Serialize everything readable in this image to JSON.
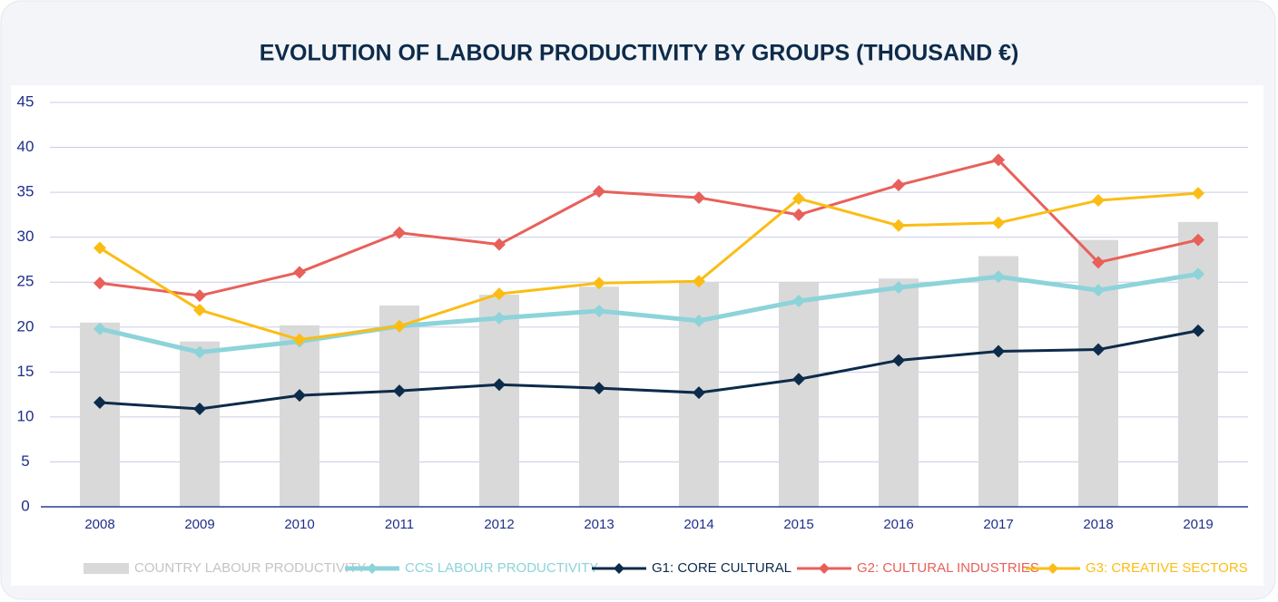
{
  "chart_data": {
    "type": "combo",
    "title": "EVOLUTION OF LABOUR PRODUCTIVITY BY GROUPS (THOUSAND €)",
    "categories": [
      "2008",
      "2009",
      "2010",
      "2011",
      "2012",
      "2013",
      "2014",
      "2015",
      "2016",
      "2017",
      "2018",
      "2019"
    ],
    "series": [
      {
        "name": "COUNTRY LABOUR PRODUCTIVITY",
        "type": "bar",
        "color": "#d9d9d9",
        "values": [
          20.5,
          18.4,
          20.2,
          22.4,
          23.6,
          24.5,
          25.0,
          25.0,
          25.4,
          27.9,
          29.7,
          31.7
        ]
      },
      {
        "name": "CCS LABOUR PRODUCTIVITY",
        "type": "line",
        "color": "#8dd3da",
        "values": [
          19.8,
          17.2,
          18.4,
          20.1,
          21.0,
          21.8,
          20.7,
          22.9,
          24.4,
          25.6,
          24.1,
          25.9
        ]
      },
      {
        "name": "G1: CORE CULTURAL",
        "type": "line",
        "color": "#0d2b4a",
        "values": [
          11.6,
          10.9,
          12.4,
          12.9,
          13.6,
          13.2,
          12.7,
          14.2,
          16.3,
          17.3,
          17.5,
          19.6
        ]
      },
      {
        "name": "G2: CULTURAL INDUSTRIES",
        "type": "line",
        "color": "#e8605a",
        "values": [
          24.9,
          23.5,
          26.1,
          30.5,
          29.2,
          35.1,
          34.4,
          32.5,
          35.8,
          38.6,
          27.2,
          29.7
        ]
      },
      {
        "name": "G3: CREATIVE SECTORS",
        "type": "line",
        "color": "#fbbd14",
        "values": [
          28.8,
          21.9,
          18.6,
          20.1,
          23.7,
          24.9,
          25.1,
          34.3,
          31.3,
          31.6,
          34.1,
          34.9
        ]
      }
    ],
    "ylim": [
      0,
      45
    ],
    "yticks": [
      0,
      5,
      10,
      15,
      20,
      25,
      30,
      35,
      40,
      45
    ],
    "grid": true,
    "legend": "bottom"
  }
}
